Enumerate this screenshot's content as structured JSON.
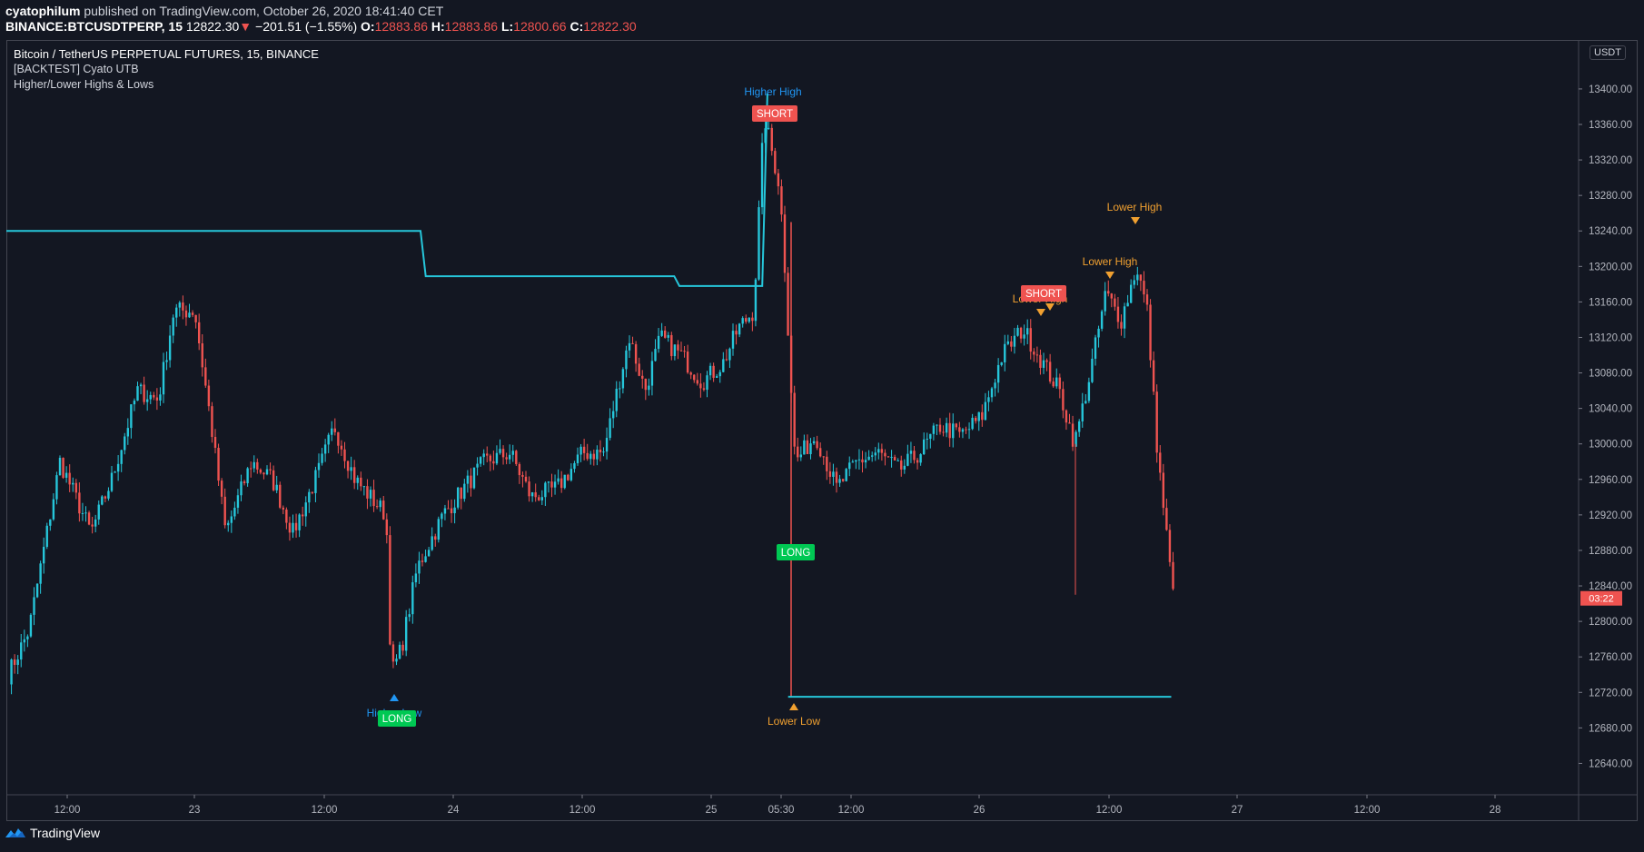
{
  "header": {
    "author": "cyatophilum",
    "published_text": "published on TradingView.com, October 26, 2020 18:41:40 CET",
    "symbol_line": "BINANCE:BTCUSDTPERP, 15",
    "last_price": "12822.30",
    "change": "−201.51 (−1.55%)",
    "open_label": "O:",
    "open": "12883.86",
    "high_label": "H:",
    "high": "12883.86",
    "low_label": "L:",
    "low": "12800.66",
    "close_label": "C:",
    "close": "12822.30"
  },
  "legend": {
    "title": "Bitcoin / TetherUS PERPETUAL FUTURES, 15, BINANCE",
    "indicator1": "[BACKTEST] Cyato UTB",
    "indicator2": "Higher/Lower Highs & Lows"
  },
  "price_axis": {
    "currency": "USDT",
    "countdown": "03:22",
    "labels": [
      "13400.00",
      "13360.00",
      "13320.00",
      "13280.00",
      "13240.00",
      "13200.00",
      "13160.00",
      "13120.00",
      "13080.00",
      "13040.00",
      "13000.00",
      "12960.00",
      "12920.00",
      "12880.00",
      "12840.00",
      "12800.00",
      "12760.00",
      "12720.00",
      "12680.00",
      "12640.00"
    ]
  },
  "time_axis": {
    "labels": [
      "12:00",
      "23",
      "12:00",
      "24",
      "12:00",
      "25",
      "05:30",
      "12:00",
      "26",
      "12:00",
      "27",
      "12:00",
      "28"
    ]
  },
  "annotations": {
    "higher_high": "Higher High",
    "higher_low": "Higher Low",
    "lower_low": "Lower Low",
    "lower_high_1": "Lower High",
    "lower_high_2": "Lower High",
    "lower_high_3": "Lower High",
    "short_1": "SHORT",
    "short_2": "SHORT",
    "long_1": "LONG",
    "long_2": "LONG"
  },
  "footer": {
    "brand": "TradingView"
  },
  "colors": {
    "background": "#131722",
    "up_candle": "#26c6da",
    "down_candle": "#ef5350",
    "stop_line": "#26c6da",
    "short_badge": "#ef5350",
    "long_badge": "#26a69a",
    "higher_color": "#2196f3",
    "lower_color": "#f0a030",
    "countdown_bg": "#ef5350"
  },
  "chart_data": {
    "type": "candlestick",
    "title": "Bitcoin / TetherUS PERPETUAL FUTURES, 15, BINANCE",
    "y_range": [
      12620,
      13440
    ],
    "y_ticks": [
      12640,
      12680,
      12720,
      12760,
      12800,
      12840,
      12880,
      12920,
      12960,
      13000,
      13040,
      13080,
      13120,
      13160,
      13200,
      13240,
      13280,
      13320,
      13360,
      13400
    ],
    "x_ticks": [
      "12:00",
      "23",
      "12:00",
      "24",
      "12:00",
      "25",
      "05:30",
      "12:00",
      "26",
      "12:00",
      "27",
      "12:00",
      "28"
    ],
    "price_path_keypoints": [
      {
        "t": 0,
        "p": 12740
      },
      {
        "t": 0.02,
        "p": 12790
      },
      {
        "t": 0.05,
        "p": 12980
      },
      {
        "t": 0.08,
        "p": 12900
      },
      {
        "t": 0.1,
        "p": 12960
      },
      {
        "t": 0.125,
        "p": 13060
      },
      {
        "t": 0.145,
        "p": 13050
      },
      {
        "t": 0.16,
        "p": 13150
      },
      {
        "t": 0.18,
        "p": 13150
      },
      {
        "t": 0.195,
        "p": 13030
      },
      {
        "t": 0.21,
        "p": 12900
      },
      {
        "t": 0.235,
        "p": 12980
      },
      {
        "t": 0.255,
        "p": 12960
      },
      {
        "t": 0.275,
        "p": 12900
      },
      {
        "t": 0.3,
        "p": 12970
      },
      {
        "t": 0.315,
        "p": 13020
      },
      {
        "t": 0.335,
        "p": 12960
      },
      {
        "t": 0.35,
        "p": 12940
      },
      {
        "t": 0.365,
        "p": 12920
      },
      {
        "t": 0.37,
        "p": 12740
      },
      {
        "t": 0.38,
        "p": 12770
      },
      {
        "t": 0.395,
        "p": 12860
      },
      {
        "t": 0.42,
        "p": 12920
      },
      {
        "t": 0.44,
        "p": 12950
      },
      {
        "t": 0.46,
        "p": 12980
      },
      {
        "t": 0.485,
        "p": 12990
      },
      {
        "t": 0.505,
        "p": 12940
      },
      {
        "t": 0.53,
        "p": 12950
      },
      {
        "t": 0.555,
        "p": 12990
      },
      {
        "t": 0.575,
        "p": 12990
      },
      {
        "t": 0.59,
        "p": 13070
      },
      {
        "t": 0.6,
        "p": 13120
      },
      {
        "t": 0.615,
        "p": 13060
      },
      {
        "t": 0.63,
        "p": 13120
      },
      {
        "t": 0.65,
        "p": 13100
      },
      {
        "t": 0.67,
        "p": 13070
      },
      {
        "t": 0.69,
        "p": 13090
      },
      {
        "t": 0.705,
        "p": 13130
      },
      {
        "t": 0.72,
        "p": 13150
      },
      {
        "t": 0.73,
        "p": 13370
      },
      {
        "t": 0.745,
        "p": 13290
      },
      {
        "t": 0.75,
        "p": 13200
      },
      {
        "t": 0.76,
        "p": 12980
      },
      {
        "t": 0.78,
        "p": 13010
      },
      {
        "t": 0.8,
        "p": 12950
      },
      {
        "t": 0.82,
        "p": 12980
      },
      {
        "t": 0.84,
        "p": 12990
      },
      {
        "t": 0.86,
        "p": 12970
      },
      {
        "t": 0.88,
        "p": 12990
      },
      {
        "t": 0.9,
        "p": 13020
      },
      {
        "t": 0.92,
        "p": 13010
      },
      {
        "t": 0.94,
        "p": 13030
      },
      {
        "t": 0.96,
        "p": 13100
      },
      {
        "t": 0.98,
        "p": 13130
      },
      {
        "t": 1.0,
        "p": 13090
      },
      {
        "t": 1.015,
        "p": 13060
      },
      {
        "t": 1.03,
        "p": 13000
      },
      {
        "t": 1.045,
        "p": 13080
      },
      {
        "t": 1.06,
        "p": 13170
      },
      {
        "t": 1.075,
        "p": 13140
      },
      {
        "t": 1.09,
        "p": 13200
      },
      {
        "t": 1.1,
        "p": 13150
      },
      {
        "t": 1.11,
        "p": 12990
      },
      {
        "t": 1.125,
        "p": 12830
      }
    ],
    "stop_line": [
      {
        "x_frac": 0.0,
        "p": 13240
      },
      {
        "x_frac": 0.4,
        "p": 13240
      },
      {
        "x_frac": 0.405,
        "p": 13189
      },
      {
        "x_frac": 0.645,
        "p": 13189
      },
      {
        "x_frac": 0.65,
        "p": 13178
      },
      {
        "x_frac": 0.73,
        "p": 13178
      },
      {
        "x_frac": 0.735,
        "p": 13395
      }
    ],
    "stop_line_2": [
      {
        "x_frac": 0.755,
        "p": 12715
      },
      {
        "x_frac": 1.125,
        "p": 12715
      }
    ]
  }
}
